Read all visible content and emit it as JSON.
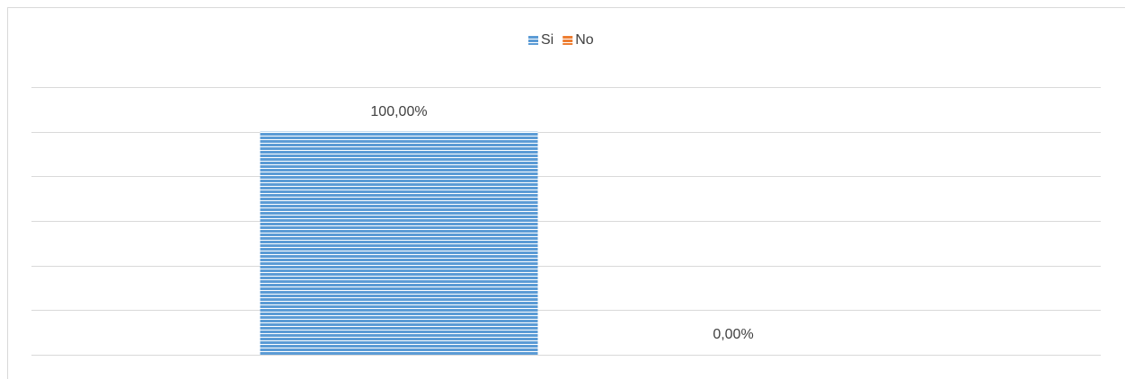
{
  "chart_data": {
    "type": "bar",
    "categories": [
      null
    ],
    "series": [
      {
        "name": "Si",
        "color": "#5b9bd5",
        "values": [
          100
        ],
        "value_labels": [
          "100,00%"
        ]
      },
      {
        "name": "No",
        "color": "#ed7d31",
        "values": [
          0
        ],
        "value_labels": [
          "0,00%"
        ]
      }
    ],
    "ylim": [
      0,
      120
    ],
    "yticks": [
      0,
      20,
      40,
      60,
      80,
      100,
      120
    ],
    "grid": true,
    "legend": "top"
  }
}
